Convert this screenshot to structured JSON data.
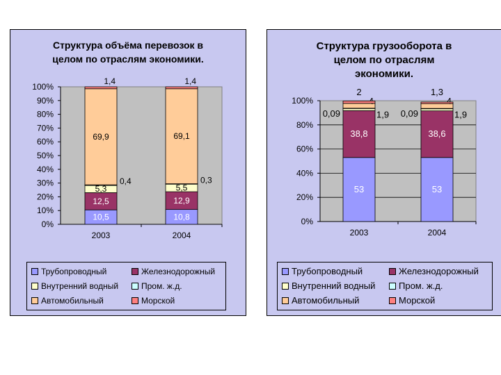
{
  "colors": {
    "pipeline": "#9999ff",
    "rail": "#993366",
    "inland": "#ffffcc",
    "industrial": "#ccffff",
    "auto": "#ffcc99",
    "sea": "#ff8080",
    "plot_bg": "#c0c0c0",
    "panel_bg": "#c8c8f0"
  },
  "legend": [
    {
      "key": "pipeline",
      "label": "Трубопроводный"
    },
    {
      "key": "rail",
      "label": "Железнодорожный"
    },
    {
      "key": "inland",
      "label": "Внутренний водный"
    },
    {
      "key": "industrial",
      "label": "Пром. ж.д."
    },
    {
      "key": "auto",
      "label": "Автомобильный"
    },
    {
      "key": "sea",
      "label": "Морской"
    }
  ],
  "chart_data": [
    {
      "type": "bar",
      "stacked": true,
      "title": "Структура объёма перевозок в\nцелом по отраслям экономики.",
      "categories": [
        "2003",
        "2004"
      ],
      "series": [
        {
          "name": "Трубопроводный",
          "key": "pipeline",
          "values": [
            10.5,
            10.8
          ],
          "labels": [
            "10,5",
            "10,8"
          ]
        },
        {
          "name": "Железнодорожный",
          "key": "rail",
          "values": [
            12.5,
            12.9
          ],
          "labels": [
            "12,5",
            "12,9"
          ]
        },
        {
          "name": "Внутренний водный",
          "key": "inland",
          "values": [
            5.3,
            5.5
          ],
          "labels": [
            "5,3",
            "5,5"
          ]
        },
        {
          "name": "Пром. ж.д.",
          "key": "industrial",
          "values": [
            0.4,
            0.3
          ],
          "labels": [
            "0,4",
            "0,3"
          ]
        },
        {
          "name": "Автомобильный",
          "key": "auto",
          "values": [
            69.9,
            69.1
          ],
          "labels": [
            "69,9",
            "69,1"
          ]
        },
        {
          "name": "Морской",
          "key": "sea",
          "values": [
            1.4,
            1.4
          ],
          "labels": [
            "1,4",
            "1,4"
          ]
        }
      ],
      "yticks": [
        "0%",
        "10%",
        "20%",
        "30%",
        "40%",
        "50%",
        "60%",
        "70%",
        "80%",
        "90%",
        "100%"
      ],
      "ylim": [
        0,
        100
      ],
      "grid": false,
      "legend_position": "bottom"
    },
    {
      "type": "bar",
      "stacked": true,
      "title": "Структура грузооборота в\nцелом по отраслям\nэкономики.",
      "categories": [
        "2003",
        "2004"
      ],
      "series": [
        {
          "name": "Трубопроводный",
          "key": "pipeline",
          "values": [
            53,
            53
          ],
          "labels": [
            "53",
            "53"
          ]
        },
        {
          "name": "Железнодорожный",
          "key": "rail",
          "values": [
            38.8,
            38.6
          ],
          "labels": [
            "38,8",
            "38,6"
          ]
        },
        {
          "name": "Внутренний водный",
          "key": "inland",
          "values": [
            1.9,
            1.9
          ],
          "labels": [
            "1,9",
            "1,9"
          ]
        },
        {
          "name": "Пром. ж.д.",
          "key": "industrial",
          "values": [
            0.09,
            0.09
          ],
          "labels": [
            "0,09",
            "0,09"
          ]
        },
        {
          "name": "Автомобильный",
          "key": "auto",
          "values": [
            4,
            4
          ],
          "labels": [
            "4",
            "4"
          ]
        },
        {
          "name": "Морской",
          "key": "sea",
          "values": [
            2,
            1.3
          ],
          "labels": [
            "2",
            "1,3"
          ]
        }
      ],
      "yticks": [
        "0%",
        "20%",
        "40%",
        "60%",
        "80%",
        "100%"
      ],
      "ylim": [
        0,
        100
      ],
      "grid": true,
      "legend_position": "bottom"
    }
  ]
}
